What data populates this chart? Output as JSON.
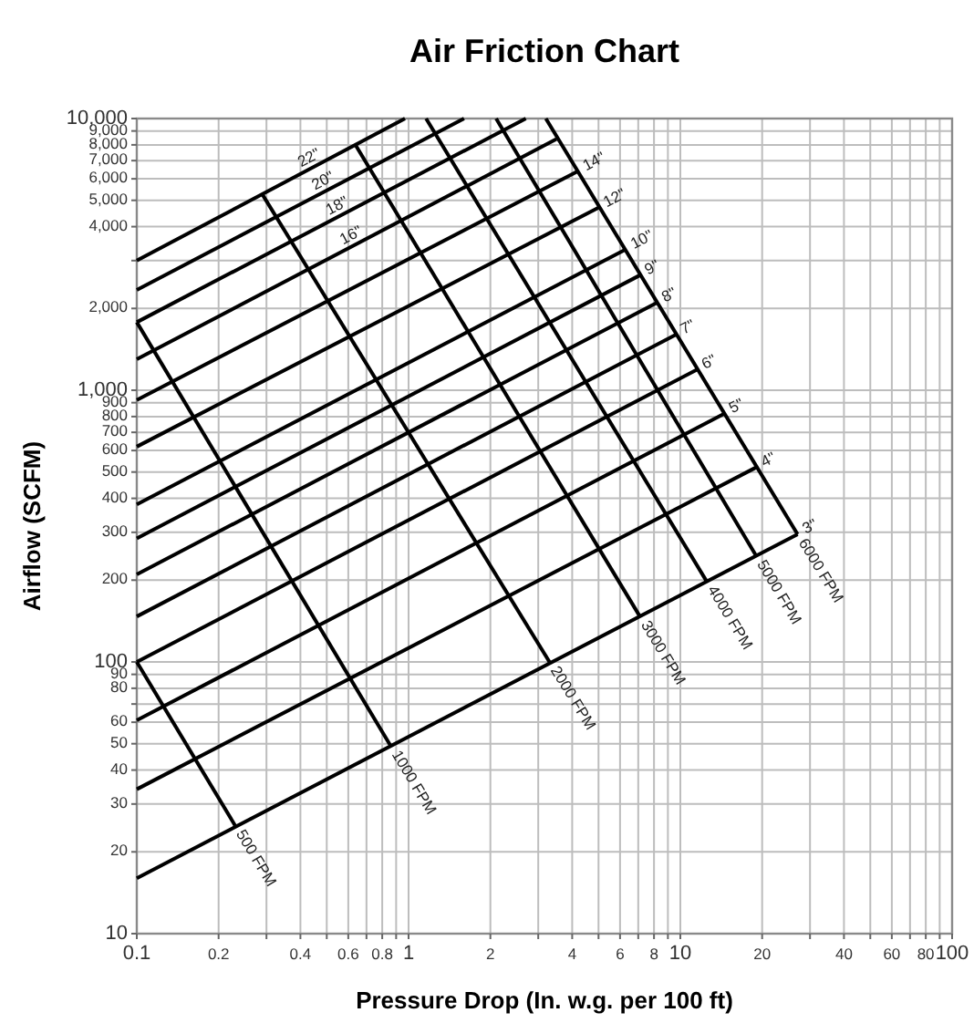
{
  "chart_data": {
    "type": "line",
    "title": "Air Friction Chart",
    "xlabel": "Pressure Drop (In. w.g. per 100 ft)",
    "ylabel": "Airflow (SCFM)",
    "log": "xy",
    "grid": true,
    "xlim": [
      0.1,
      100
    ],
    "ylim": [
      10,
      10000
    ],
    "xticks": [
      0.1,
      0.2,
      {
        "value": 0.3,
        "label": null
      },
      0.4,
      {
        "value": 0.5,
        "label": null
      },
      0.6,
      {
        "value": 0.7,
        "label": null
      },
      0.8,
      {
        "value": 0.9,
        "label": null
      },
      1,
      2,
      {
        "value": 3,
        "label": null
      },
      4,
      {
        "value": 5,
        "label": null
      },
      6,
      {
        "value": 7,
        "label": null
      },
      8,
      {
        "value": 9,
        "label": null
      },
      10,
      20,
      {
        "value": 30,
        "label": null
      },
      40,
      {
        "value": 50,
        "label": null
      },
      60,
      {
        "value": 70,
        "label": null
      },
      80,
      {
        "value": 90,
        "label": null
      },
      100
    ],
    "yticks": [
      10,
      20,
      30,
      40,
      50,
      60,
      {
        "value": 70,
        "label": null
      },
      80,
      90,
      100,
      200,
      300,
      400,
      500,
      600,
      700,
      800,
      900,
      {
        "value": 1000,
        "label": "1,000"
      },
      {
        "value": 2000,
        "label": "2,000"
      },
      {
        "value": 3000,
        "label": null
      },
      {
        "value": 4000,
        "label": "4,000"
      },
      {
        "value": 5000,
        "label": "5,000"
      },
      {
        "value": 6000,
        "label": "6,000"
      },
      {
        "value": 7000,
        "label": "7,000"
      },
      {
        "value": 8000,
        "label": "8,000"
      },
      {
        "value": 9000,
        "label": "9,000"
      },
      {
        "value": 10000,
        "label": "10,000"
      }
    ],
    "series": [
      {
        "name": "22\"",
        "color": "#000000",
        "x": [
          0.1,
          0.97
        ],
        "values": [
          3000,
          10000
        ]
      },
      {
        "name": "20\"",
        "color": "#000000",
        "x": [
          0.1,
          1.6
        ],
        "values": [
          2340,
          10000
        ]
      },
      {
        "name": "18\"",
        "color": "#000000",
        "x": [
          0.1,
          2.7
        ],
        "values": [
          1780,
          10000
        ]
      },
      {
        "name": "16\"",
        "color": "#000000",
        "x": [
          0.1,
          3.5
        ],
        "values": [
          1300,
          8400
        ]
      },
      {
        "name": "14\"",
        "color": "#000000",
        "x": [
          0.1,
          4.2
        ],
        "values": [
          920,
          6400
        ]
      },
      {
        "name": "12\"",
        "color": "#000000",
        "x": [
          0.1,
          5.0
        ],
        "values": [
          620,
          4700
        ]
      },
      {
        "name": "10\"",
        "color": "#000000",
        "x": [
          0.1,
          6.3
        ],
        "values": [
          380,
          3300
        ]
      },
      {
        "name": "9\"",
        "color": "#000000",
        "x": [
          0.1,
          7.1
        ],
        "values": [
          285,
          2650
        ]
      },
      {
        "name": "8\"",
        "color": "#000000",
        "x": [
          0.1,
          8.2
        ],
        "values": [
          210,
          2100
        ]
      },
      {
        "name": "7\"",
        "color": "#000000",
        "x": [
          0.1,
          9.6
        ],
        "values": [
          147,
          1600
        ]
      },
      {
        "name": "6\"",
        "color": "#000000",
        "x": [
          0.1,
          11.5
        ],
        "values": [
          100,
          1190
        ]
      },
      {
        "name": "5\"",
        "color": "#000000",
        "x": [
          0.1,
          14.5
        ],
        "values": [
          61,
          820
        ]
      },
      {
        "name": "4\"",
        "color": "#000000",
        "x": [
          0.1,
          19
        ],
        "values": [
          34,
          520
        ]
      },
      {
        "name": "3\"",
        "color": "#000000",
        "x": [
          0.1,
          27
        ],
        "values": [
          16,
          295
        ]
      },
      {
        "name": "500 FPM",
        "color": "#000000",
        "x": [
          0.1,
          0.23
        ],
        "values": [
          100,
          25
        ]
      },
      {
        "name": "1000 FPM",
        "color": "#000000",
        "x": [
          0.1,
          0.86
        ],
        "values": [
          1780,
          49
        ]
      },
      {
        "name": "2000 FPM",
        "color": "#000000",
        "x": [
          0.29,
          3.3
        ],
        "values": [
          5250,
          100
        ]
      },
      {
        "name": "3000 FPM",
        "color": "#000000",
        "x": [
          0.64,
          7.1
        ],
        "values": [
          7950,
          147
        ]
      },
      {
        "name": "4000 FPM",
        "color": "#000000",
        "x": [
          1.16,
          12.5
        ],
        "values": [
          10000,
          198
        ]
      },
      {
        "name": "5000 FPM",
        "color": "#000000",
        "x": [
          2.1,
          19
        ],
        "values": [
          10000,
          246
        ]
      },
      {
        "name": "6000 FPM",
        "color": "#000000",
        "x": [
          3.2,
          27
        ],
        "values": [
          10000,
          295
        ]
      }
    ]
  }
}
